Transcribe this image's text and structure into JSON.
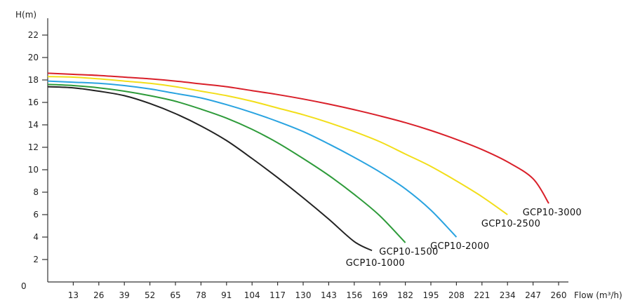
{
  "chart_data": {
    "type": "line",
    "ylabel": "H(m)",
    "xlabel": "Flow (m³/h)",
    "xlim": [
      0,
      260
    ],
    "ylim": [
      0,
      23.5
    ],
    "origin_label": "0",
    "x_ticks": [
      13,
      26,
      39,
      52,
      65,
      78,
      91,
      104,
      117,
      130,
      143,
      156,
      169,
      182,
      195,
      208,
      221,
      234,
      247,
      260
    ],
    "y_ticks": [
      2,
      4,
      6,
      8,
      10,
      12,
      14,
      16,
      18,
      20,
      22
    ],
    "grid": false,
    "legend": "inline labels at curve ends",
    "series": [
      {
        "name": "GCP10-1000",
        "color": "#222222",
        "points": [
          [
            0,
            17.4
          ],
          [
            13,
            17.3
          ],
          [
            26,
            17.0
          ],
          [
            39,
            16.6
          ],
          [
            52,
            15.9
          ],
          [
            65,
            15.0
          ],
          [
            78,
            13.9
          ],
          [
            91,
            12.6
          ],
          [
            104,
            11.0
          ],
          [
            117,
            9.3
          ],
          [
            130,
            7.5
          ],
          [
            143,
            5.6
          ],
          [
            156,
            3.6
          ],
          [
            165,
            2.8
          ]
        ]
      },
      {
        "name": "GCP10-1500",
        "color": "#2e9b3a",
        "points": [
          [
            0,
            17.6
          ],
          [
            13,
            17.5
          ],
          [
            26,
            17.3
          ],
          [
            39,
            17.0
          ],
          [
            52,
            16.6
          ],
          [
            65,
            16.1
          ],
          [
            78,
            15.4
          ],
          [
            91,
            14.6
          ],
          [
            104,
            13.6
          ],
          [
            117,
            12.4
          ],
          [
            130,
            11.0
          ],
          [
            143,
            9.5
          ],
          [
            156,
            7.8
          ],
          [
            169,
            5.9
          ],
          [
            182,
            3.5
          ]
        ]
      },
      {
        "name": "GCP10-2000",
        "color": "#29a3e0",
        "points": [
          [
            0,
            17.9
          ],
          [
            13,
            17.8
          ],
          [
            26,
            17.7
          ],
          [
            39,
            17.5
          ],
          [
            52,
            17.2
          ],
          [
            65,
            16.8
          ],
          [
            78,
            16.4
          ],
          [
            91,
            15.8
          ],
          [
            104,
            15.1
          ],
          [
            117,
            14.3
          ],
          [
            130,
            13.4
          ],
          [
            143,
            12.3
          ],
          [
            156,
            11.1
          ],
          [
            169,
            9.8
          ],
          [
            182,
            8.3
          ],
          [
            195,
            6.4
          ],
          [
            208,
            4.0
          ]
        ]
      },
      {
        "name": "GCP10-2500",
        "color": "#f2de1a",
        "points": [
          [
            0,
            18.3
          ],
          [
            13,
            18.25
          ],
          [
            26,
            18.1
          ],
          [
            39,
            17.9
          ],
          [
            52,
            17.7
          ],
          [
            65,
            17.4
          ],
          [
            78,
            17.0
          ],
          [
            91,
            16.6
          ],
          [
            104,
            16.1
          ],
          [
            117,
            15.5
          ],
          [
            130,
            14.9
          ],
          [
            143,
            14.2
          ],
          [
            156,
            13.4
          ],
          [
            169,
            12.5
          ],
          [
            182,
            11.4
          ],
          [
            195,
            10.3
          ],
          [
            208,
            9.0
          ],
          [
            221,
            7.6
          ],
          [
            234,
            6.0
          ]
        ]
      },
      {
        "name": "GCP10-3000",
        "color": "#d9202a",
        "points": [
          [
            0,
            18.6
          ],
          [
            13,
            18.5
          ],
          [
            26,
            18.4
          ],
          [
            39,
            18.25
          ],
          [
            52,
            18.1
          ],
          [
            65,
            17.9
          ],
          [
            78,
            17.65
          ],
          [
            91,
            17.4
          ],
          [
            104,
            17.05
          ],
          [
            117,
            16.7
          ],
          [
            130,
            16.3
          ],
          [
            143,
            15.85
          ],
          [
            156,
            15.35
          ],
          [
            169,
            14.8
          ],
          [
            182,
            14.2
          ],
          [
            195,
            13.5
          ],
          [
            208,
            12.7
          ],
          [
            221,
            11.8
          ],
          [
            234,
            10.7
          ],
          [
            247,
            9.2
          ],
          [
            255,
            7.0
          ]
        ]
      }
    ]
  }
}
